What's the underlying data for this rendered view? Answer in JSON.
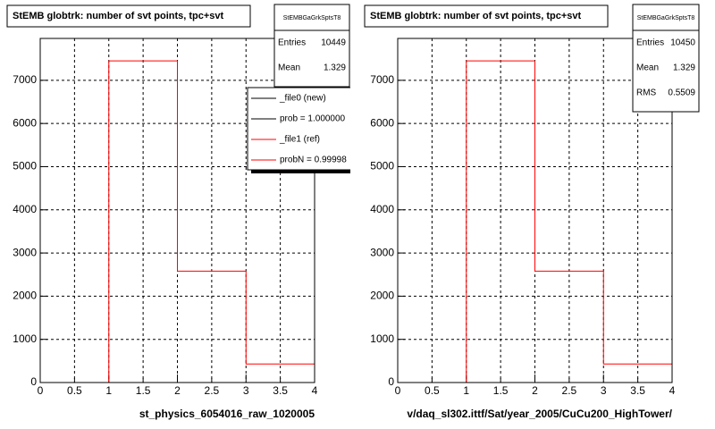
{
  "chart_data": [
    {
      "type": "histogram",
      "title": "StEMB globtrk: number of svt points, tpc+svt",
      "x_label": "st_physics_6054016_raw_1020005",
      "bins": [
        0,
        1,
        2,
        3,
        4
      ],
      "counts": [
        0,
        7450,
        2580,
        430
      ],
      "color": "#ff0000",
      "xlim": [
        0,
        4
      ],
      "ylim": [
        0,
        7970
      ],
      "xticks": [
        0,
        0.5,
        1,
        1.5,
        2,
        2.5,
        3,
        3.5,
        4
      ],
      "yticks": [
        0,
        1000,
        2000,
        3000,
        4000,
        5000,
        6000,
        7000
      ],
      "grid": true,
      "stats": {
        "title": "StEMBGaGrkSptsT8",
        "rows": [
          [
            "Entries",
            "10449"
          ],
          [
            "Mean",
            "1.329"
          ]
        ]
      },
      "legend": [
        {
          "name": "_file0 (new)",
          "color": "#000000"
        },
        {
          "name": "prob = 1.000000",
          "color": "#000000"
        },
        {
          "name": "_file1 (ref)",
          "color": "#ff0000"
        },
        {
          "name": "probN = 0.99998",
          "color": "#ff0000"
        }
      ]
    },
    {
      "type": "histogram",
      "title": "StEMB globtrk: number of svt points, tpc+svt",
      "x_label": "v/daq_sl302.ittf/Sat/year_2005/CuCu200_HighTower/",
      "bins": [
        0,
        1,
        2,
        3,
        4
      ],
      "counts": [
        0,
        7450,
        2580,
        430
      ],
      "color": "#ff0000",
      "xlim": [
        0,
        4
      ],
      "ylim": [
        0,
        7970
      ],
      "xticks": [
        0,
        0.5,
        1,
        1.5,
        2,
        2.5,
        3,
        3.5,
        4
      ],
      "yticks": [
        0,
        1000,
        2000,
        3000,
        4000,
        5000,
        6000,
        7000
      ],
      "grid": true,
      "stats": {
        "title": "StEMBGaGrkSptsT8",
        "rows": [
          [
            "Entries",
            "10450"
          ],
          [
            "Mean",
            "1.329"
          ],
          [
            "RMS",
            "0.5509"
          ]
        ]
      }
    }
  ]
}
